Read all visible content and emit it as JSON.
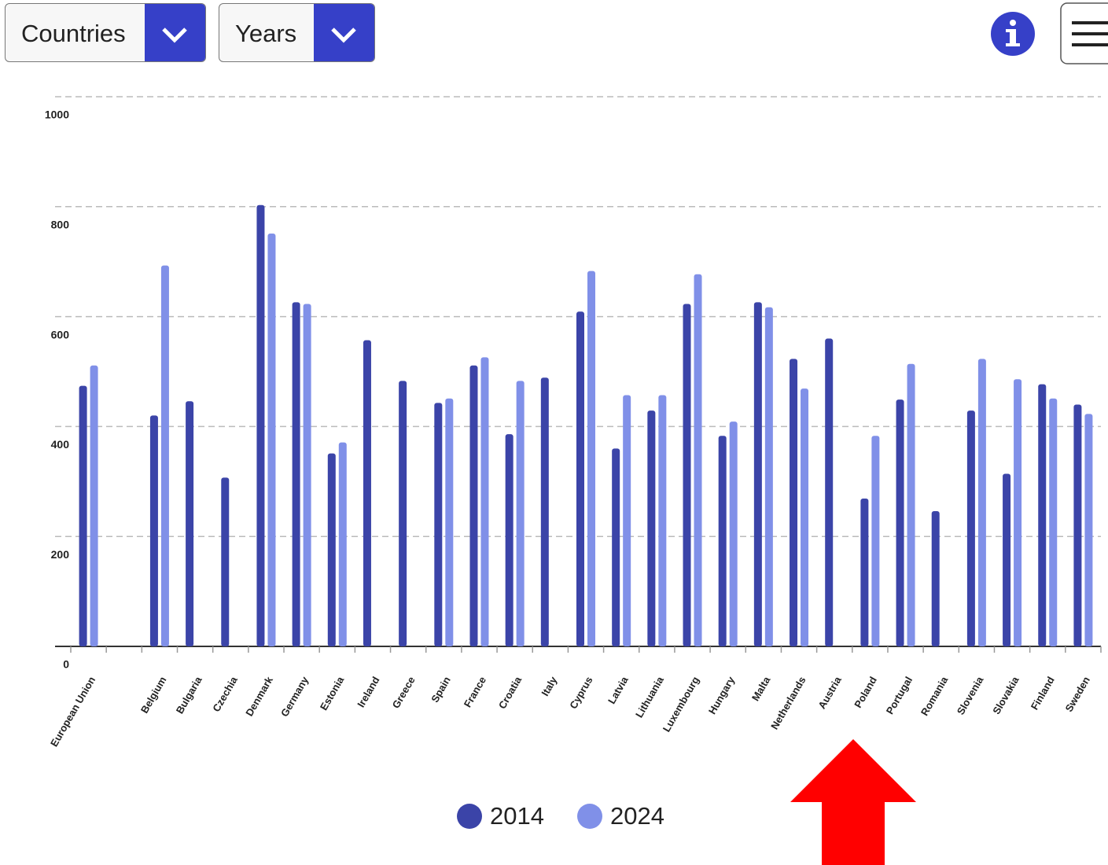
{
  "controls": {
    "countries": "Countries",
    "years": "Years"
  },
  "chart_data": {
    "type": "bar",
    "categories": [
      "European Union",
      null,
      "Belgium",
      "Bulgaria",
      "Czechia",
      "Denmark",
      "Germany",
      "Estonia",
      "Ireland",
      "Greece",
      "Spain",
      "France",
      "Croatia",
      "Italy",
      "Cyprus",
      "Latvia",
      "Lithuania",
      "Luxembourg",
      "Hungary",
      "Malta",
      "Netherlands",
      "Austria",
      "Poland",
      "Portugal",
      "Romania",
      "Slovenia",
      "Slovakia",
      "Finland",
      "Sweden"
    ],
    "series": [
      {
        "name": "2014",
        "color": "#3b44a8",
        "values": [
          474,
          null,
          420,
          446,
          307,
          803,
          626,
          351,
          557,
          483,
          443,
          511,
          386,
          489,
          609,
          360,
          429,
          623,
          383,
          626,
          523,
          560,
          269,
          449,
          246,
          429,
          314,
          477,
          440
        ]
      },
      {
        "name": "2024",
        "color": "#8090e8",
        "values": [
          511,
          null,
          693,
          null,
          null,
          751,
          623,
          371,
          null,
          null,
          451,
          526,
          483,
          null,
          683,
          457,
          457,
          677,
          409,
          617,
          469,
          null,
          383,
          514,
          null,
          523,
          486,
          451,
          423
        ]
      }
    ],
    "ylim": [
      0,
      1000
    ],
    "yticks": [
      0,
      200,
      400,
      600,
      800,
      1000
    ],
    "grid": true
  }
}
